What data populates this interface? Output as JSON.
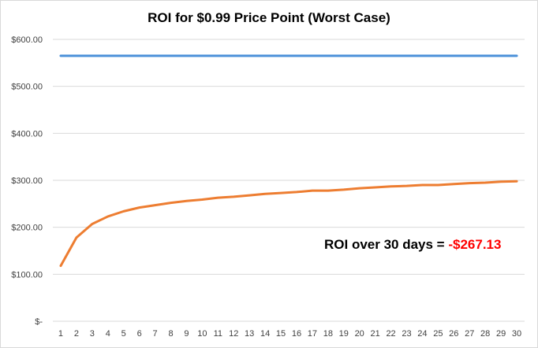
{
  "chart_data": {
    "type": "line",
    "title": "ROI for $0.99 Price Point (Worst Case)",
    "x": [
      1,
      2,
      3,
      4,
      5,
      6,
      7,
      8,
      9,
      10,
      11,
      12,
      13,
      14,
      15,
      16,
      17,
      18,
      19,
      20,
      21,
      22,
      23,
      24,
      25,
      26,
      27,
      28,
      29,
      30
    ],
    "y_tick_labels": [
      "$-",
      "$100.00",
      "$200.00",
      "$300.00",
      "$400.00",
      "$500.00",
      "$600.00"
    ],
    "y_tick_values": [
      0,
      100,
      200,
      300,
      400,
      500,
      600
    ],
    "ylim": [
      0,
      600
    ],
    "grid": true,
    "series": [
      {
        "color": "#4a90d9",
        "values": [
          565,
          565,
          565,
          565,
          565,
          565,
          565,
          565,
          565,
          565,
          565,
          565,
          565,
          565,
          565,
          565,
          565,
          565,
          565,
          565,
          565,
          565,
          565,
          565,
          565,
          565,
          565,
          565,
          565,
          565
        ]
      },
      {
        "color": "#ed7d31",
        "values": [
          118,
          178,
          207,
          223,
          234,
          242,
          247,
          252,
          256,
          259,
          263,
          265,
          268,
          271,
          273,
          275,
          278,
          278,
          280,
          283,
          285,
          287,
          288,
          290,
          290,
          292,
          294,
          295,
          297,
          298
        ]
      }
    ],
    "annotation": {
      "label": "ROI over 30 days = ",
      "value": "-$267.13",
      "value_color": "#ff0000"
    }
  }
}
